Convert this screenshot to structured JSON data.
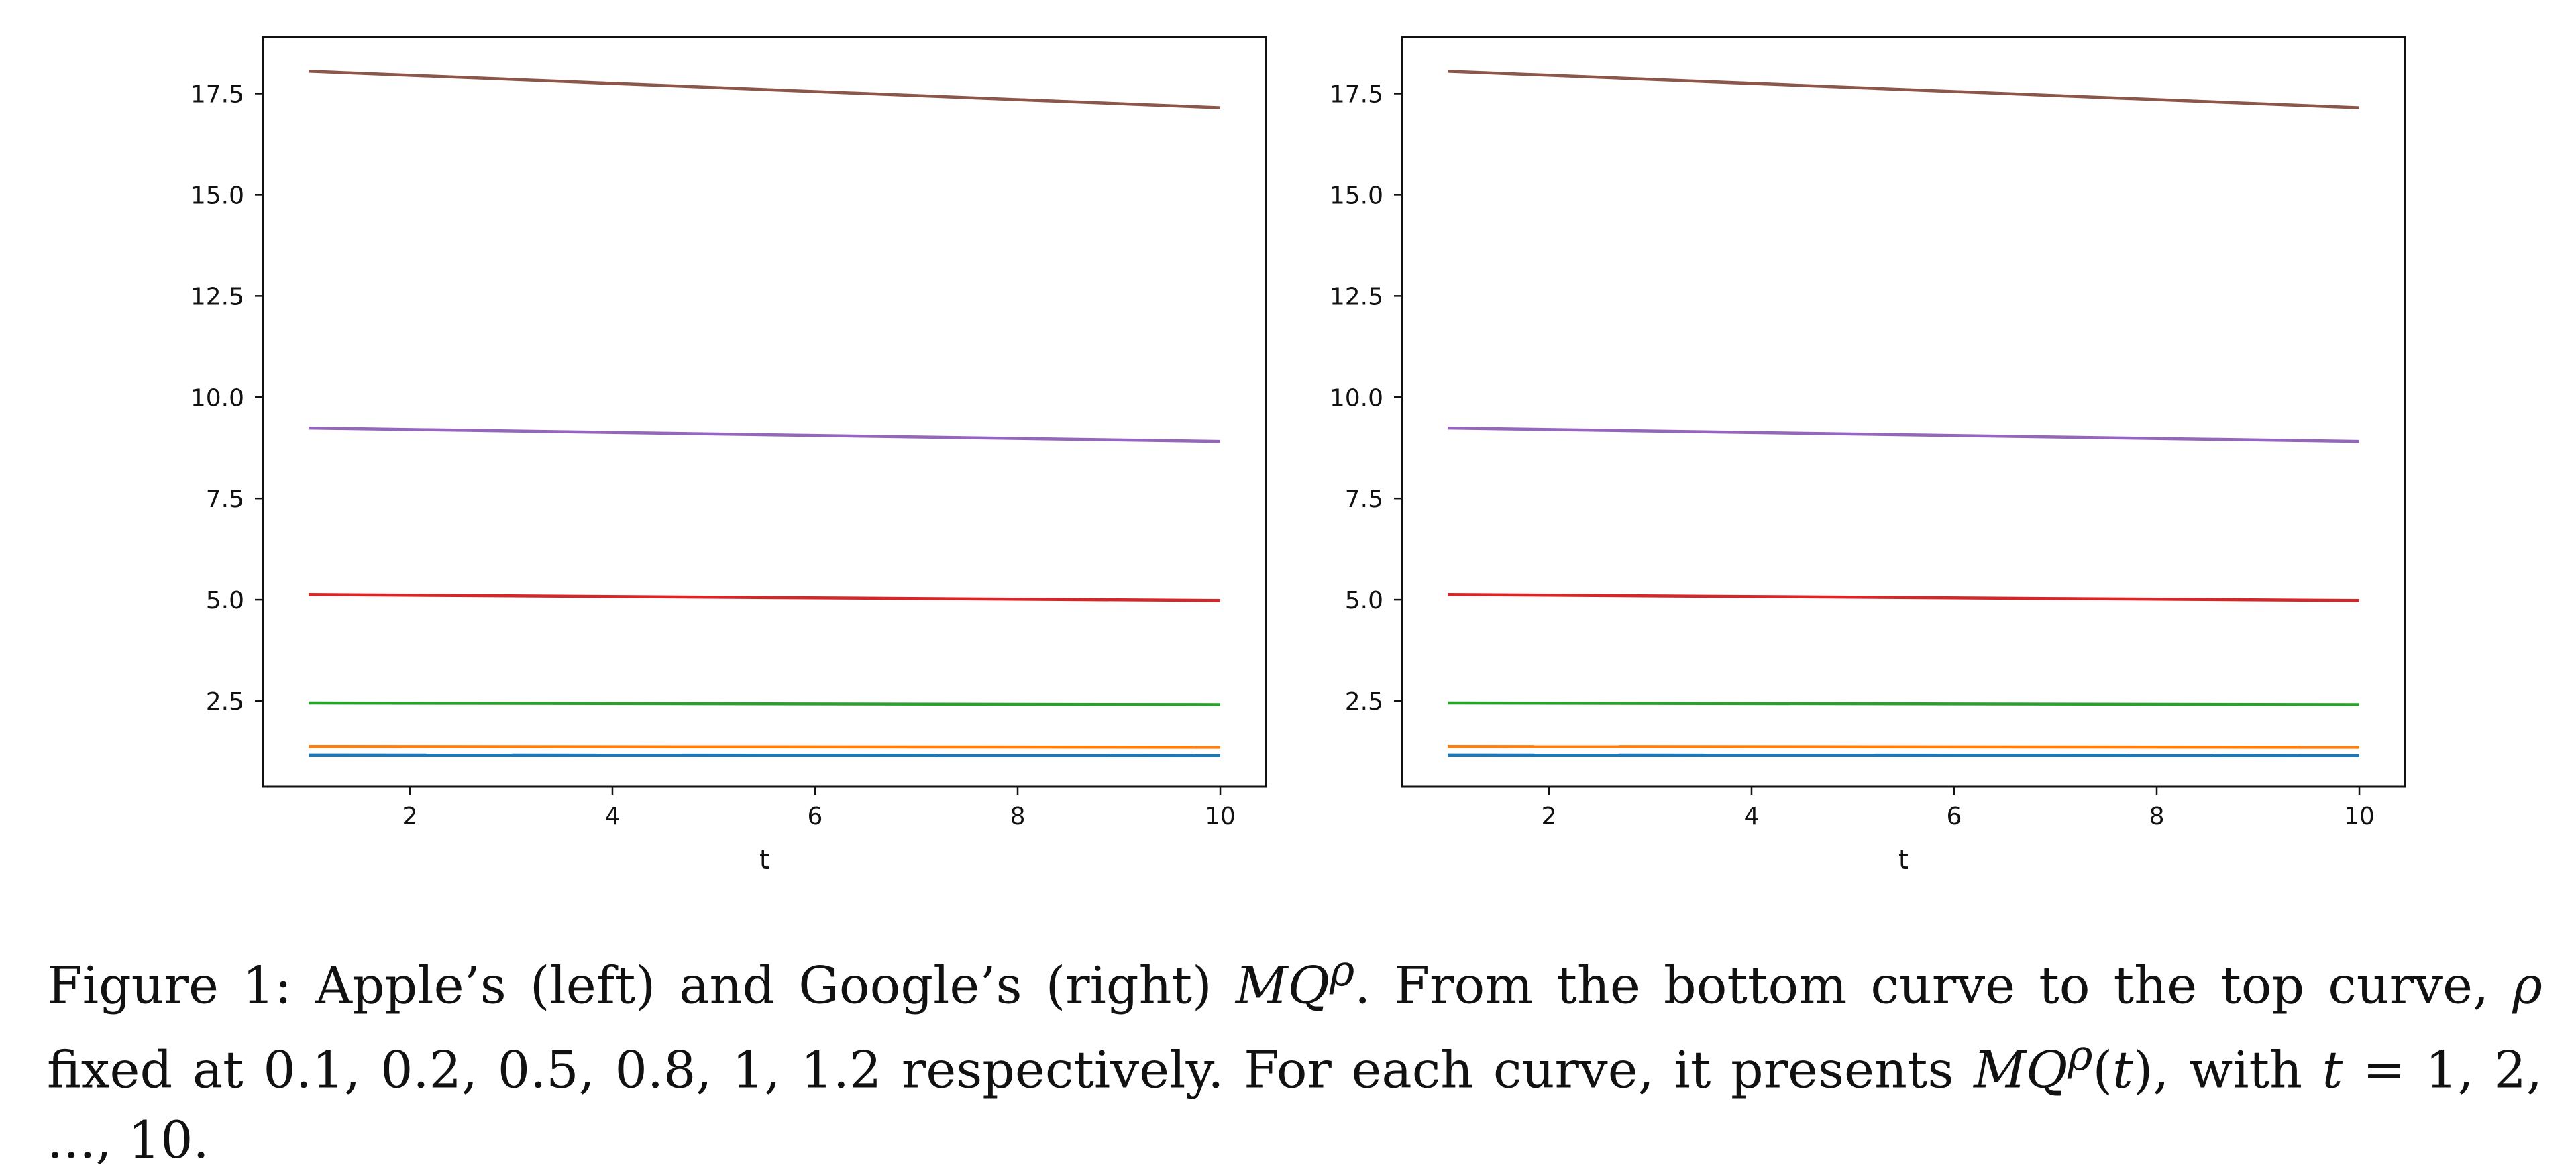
{
  "chart_data": [
    {
      "type": "line",
      "title": "",
      "xlabel": "t",
      "ylabel": "",
      "xlim": [
        0.55,
        10.45
      ],
      "ylim": [
        0.38,
        18.9
      ],
      "xticks": [
        2,
        4,
        6,
        8,
        10
      ],
      "yticks": [
        2.5,
        5.0,
        7.5,
        10.0,
        12.5,
        15.0,
        17.5
      ],
      "xtick_labels": [
        "2",
        "4",
        "6",
        "8",
        "10"
      ],
      "ytick_labels": [
        "2.5",
        "5.0",
        "7.5",
        "10.0",
        "12.5",
        "15.0",
        "17.5"
      ],
      "grid": false,
      "x": [
        1,
        10
      ],
      "series": [
        {
          "color": "#1f77b4",
          "values": [
            1.16,
            1.15
          ]
        },
        {
          "color": "#ff7f0e",
          "values": [
            1.37,
            1.35
          ]
        },
        {
          "color": "#2ca02c",
          "values": [
            2.45,
            2.41
          ]
        },
        {
          "color": "#d62728",
          "values": [
            5.13,
            4.98
          ]
        },
        {
          "color": "#9467bd",
          "values": [
            9.24,
            8.91
          ]
        },
        {
          "color": "#8c564b",
          "values": [
            18.05,
            17.15
          ]
        }
      ]
    },
    {
      "type": "line",
      "title": "",
      "xlabel": "t",
      "ylabel": "",
      "xlim": [
        0.55,
        10.45
      ],
      "ylim": [
        0.38,
        18.9
      ],
      "xticks": [
        2,
        4,
        6,
        8,
        10
      ],
      "yticks": [
        2.5,
        5.0,
        7.5,
        10.0,
        12.5,
        15.0,
        17.5
      ],
      "xtick_labels": [
        "2",
        "4",
        "6",
        "8",
        "10"
      ],
      "ytick_labels": [
        "2.5",
        "5.0",
        "7.5",
        "10.0",
        "12.5",
        "15.0",
        "17.5"
      ],
      "grid": false,
      "x": [
        1,
        10
      ],
      "series": [
        {
          "color": "#1f77b4",
          "values": [
            1.16,
            1.15
          ]
        },
        {
          "color": "#ff7f0e",
          "values": [
            1.37,
            1.35
          ]
        },
        {
          "color": "#2ca02c",
          "values": [
            2.45,
            2.41
          ]
        },
        {
          "color": "#d62728",
          "values": [
            5.13,
            4.98
          ]
        },
        {
          "color": "#9467bd",
          "values": [
            9.24,
            8.91
          ]
        },
        {
          "color": "#8c564b",
          "values": [
            18.05,
            17.15
          ]
        }
      ]
    }
  ],
  "caption": {
    "lead": "Figure 1:  Apple’s (left) and Google’s (right) ",
    "mq": "MQ",
    "rho_sup": "ρ",
    "after_mq": ".  From the bottom curve to the top curve, ",
    "rho": "ρ",
    "after_rho": " fixed at 0.1, 0.2, 0.5, 0.8, 1, 1.2 respectively. For each curve, it presents ",
    "mq2": "MQ",
    "rho_sup2": "ρ",
    "paren_open": "(",
    "t_var": "t",
    "paren_close": ")",
    "with_text": ", with ",
    "t_var2": "t",
    "equals": " = 1, 2, ..., 10."
  }
}
